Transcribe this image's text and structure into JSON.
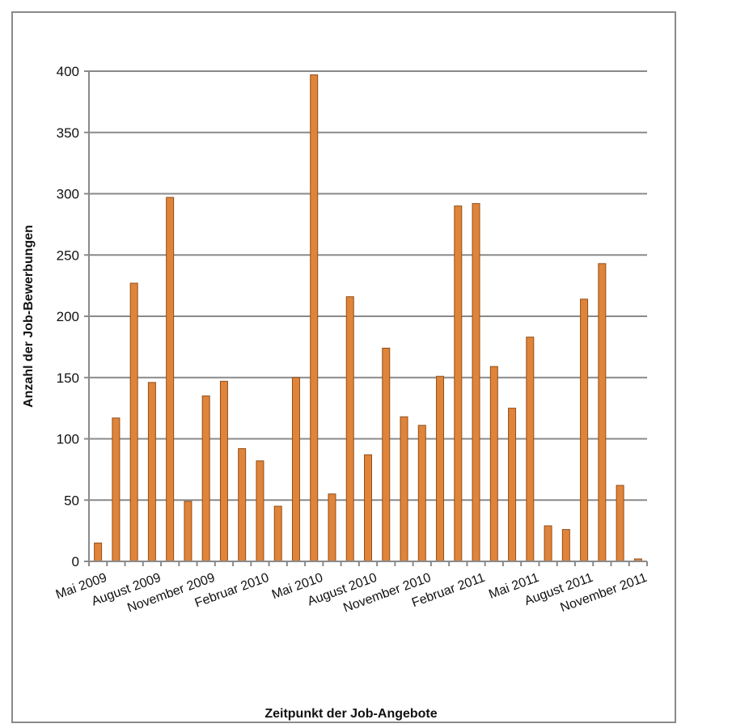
{
  "chart_data": {
    "type": "bar",
    "title": "",
    "xlabel": "Zeitpunkt der Job-Angebote",
    "ylabel": "Anzahl der Job-Bewerbungen",
    "ylim": [
      0,
      400
    ],
    "yticks": [
      0,
      50,
      100,
      150,
      200,
      250,
      300,
      350,
      400
    ],
    "grid": true,
    "bar_color": "#E0843A",
    "x_tick_labels": [
      "Mai 2009",
      "August 2009",
      "November 2009",
      "Februar 2010",
      "Mai 2010",
      "August 2010",
      "November 2010",
      "Februar 2011",
      "Mai 2011",
      "August 2011",
      "November 2011"
    ],
    "categories": [
      "Mai 2009",
      "Juni 2009",
      "Juli 2009",
      "August 2009",
      "September 2009",
      "Oktober 2009",
      "November 2009",
      "Dezember 2009",
      "Januar 2010",
      "Februar 2010",
      "März 2010",
      "April 2010",
      "Mai 2010",
      "Juni 2010",
      "Juli 2010",
      "August 2010",
      "September 2010",
      "Oktober 2010",
      "November 2010",
      "Dezember 2010",
      "Januar 2011",
      "Februar 2011",
      "März 2011",
      "April 2011",
      "Mai 2011",
      "Juni 2011",
      "Juli 2011",
      "August 2011",
      "September 2011",
      "Oktober 2011",
      "November 2011"
    ],
    "values": [
      15,
      117,
      227,
      146,
      297,
      49,
      135,
      147,
      92,
      82,
      45,
      150,
      397,
      55,
      216,
      87,
      174,
      118,
      111,
      151,
      290,
      292,
      159,
      125,
      183,
      29,
      26,
      214,
      243,
      62,
      2
    ]
  }
}
